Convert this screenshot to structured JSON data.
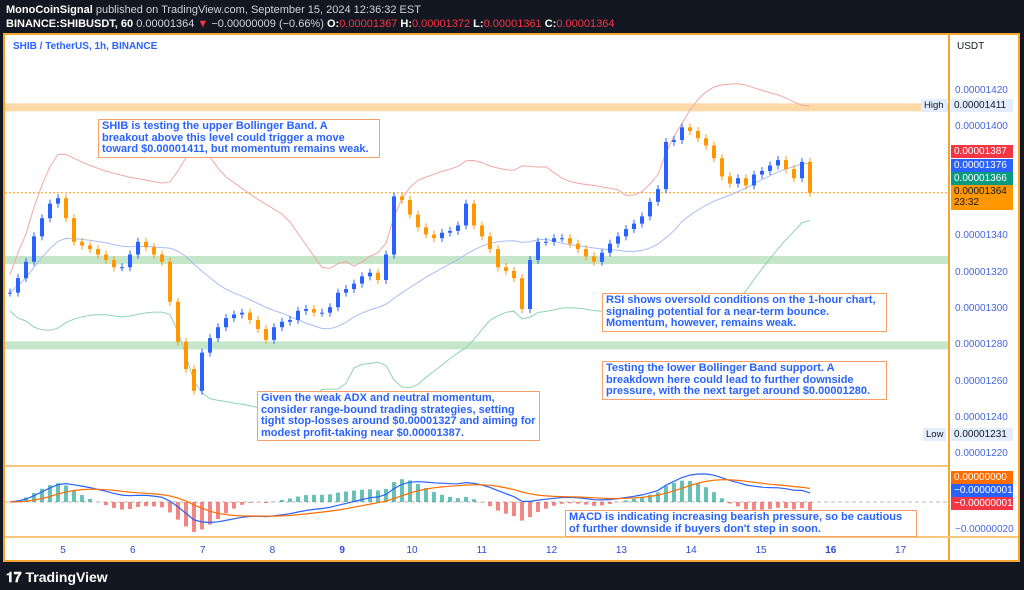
{
  "header": {
    "publisher": "MonoCoinSignal",
    "published_text": "published on TradingView.com, September 15, 2024 12:36:32 EST",
    "symbol": "BINANCE:SHIBUSDT, 60",
    "last": "0.00001364",
    "change_arrow": "▼",
    "change": "−0.00000009 (−0.66%)",
    "o_label": "O:",
    "o": "0.00001367",
    "h_label": "H:",
    "h": "0.00001372",
    "l_label": "L:",
    "l": "0.00001361",
    "c_label": "C:",
    "c": "0.00001364"
  },
  "chart_title": "SHIB / TetherUS, 1h, BINANCE",
  "currency": "USDT",
  "colors": {
    "up": "#2962ff",
    "down": "#ff9800",
    "bb_upper": "#f4a6a6",
    "bb_basis": "#a9bcf5",
    "bb_lower": "#8fd3b3",
    "macd": "#2962ff",
    "signal": "#ff6d00",
    "zone_resistance": "#fdd9a8",
    "zone_support": "#c5e6c9"
  },
  "price_axis": [
    "0.00001420",
    "0.00001400",
    "0.00001340",
    "0.00001320",
    "0.00001300",
    "0.00001280",
    "0.00001260",
    "0.00001240",
    "0.00001220"
  ],
  "price_axis_values": [
    1.42e-05,
    1.4e-05,
    1.34e-05,
    1.32e-05,
    1.3e-05,
    1.28e-05,
    1.26e-05,
    1.24e-05,
    1.22e-05
  ],
  "badges": {
    "high_label": "High",
    "high": "0.00001411",
    "low_label": "Low",
    "low": "0.00001231",
    "bb_upper": "0.00001387",
    "bb_basis": "0.00001376",
    "bb_lower": "0.00001366",
    "last": "0.00001364",
    "countdown": "23:32"
  },
  "macd_axis": {
    "histogram": "0.00000000",
    "macd": "−0.00000001",
    "signal": "−0.00000001",
    "tick": "−0.00000020"
  },
  "date_axis": [
    "5",
    "6",
    "7",
    "8",
    "9",
    "10",
    "11",
    "12",
    "13",
    "14",
    "15",
    "16",
    "17"
  ],
  "zones": {
    "resistance": 1.411e-05,
    "supports": [
      1.327e-05,
      1.28e-05
    ],
    "last_price": 1.364e-05
  },
  "notes": [
    "SHIB is testing the upper Bollinger Band. A breakout above this level could trigger a move toward $0.00001411, but momentum remains weak.",
    "RSI shows oversold conditions on the 1-hour chart, signaling potential for a near-term bounce. Momentum, however, remains weak.",
    "Testing the lower Bollinger Band support. A breakdown here could lead to further downside pressure, with the next target around $0.00001280.",
    "Given the weak ADX and neutral momentum, consider range-bound trading strategies, setting tight stop-losses around $0.00001327 and aiming for modest profit-taking near $0.00001387.",
    "MACD is indicating increasing bearish pressure, so be cautious of further downside if buyers don't step in soon."
  ],
  "footer": "TradingView",
  "chart_data": {
    "type": "candlestick",
    "ylim": [
      1.21e-05,
      1.43e-05
    ],
    "x_ticks": [
      "5",
      "6",
      "7",
      "8",
      "9",
      "10",
      "11",
      "12",
      "13",
      "14",
      "15",
      "16",
      "17"
    ],
    "closes_1e8": [
      1309,
      1317,
      1326,
      1340,
      1350,
      1358,
      1361,
      1350,
      1337,
      1335,
      1333,
      1330,
      1327,
      1323,
      1323,
      1330,
      1337,
      1334,
      1330,
      1326,
      1304,
      1282,
      1267,
      1255,
      1276,
      1284,
      1290,
      1295,
      1297,
      1298,
      1294,
      1289,
      1283,
      1290,
      1293,
      1294,
      1299,
      1300,
      1298,
      1298,
      1301,
      1309,
      1311,
      1314,
      1318,
      1320,
      1316,
      1330,
      1362,
      1360,
      1352,
      1345,
      1341,
      1339,
      1342,
      1343,
      1346,
      1358,
      1346,
      1340,
      1333,
      1323,
      1321,
      1317,
      1300,
      1327,
      1337,
      1337,
      1339,
      1339,
      1336,
      1333,
      1329,
      1326,
      1331,
      1336,
      1340,
      1344,
      1347,
      1351,
      1359,
      1366,
      1392,
      1393,
      1400,
      1398,
      1394,
      1390,
      1383,
      1373,
      1369,
      1372,
      1368,
      1374,
      1376,
      1379,
      1382,
      1377,
      1372,
      1381,
      1364
    ]
  }
}
